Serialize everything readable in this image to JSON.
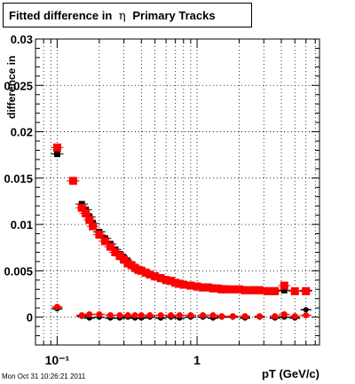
{
  "title": {
    "prefix": "Fitted difference in",
    "symbol": "η",
    "suffix": "Primary Tracks"
  },
  "footer": {
    "timestamp": "Mon Oct 31 10:26:21 2011"
  },
  "colors": {
    "series_red": "#ff0000",
    "series_black": "#000000",
    "frame": "#000000"
  },
  "chart_data": {
    "type": "scatter",
    "title": "Fitted difference in η Primary Tracks",
    "xlabel": "pT (GeV/c)",
    "ylabel": "difference in",
    "x_scale": "log",
    "xlim": [
      0.07,
      7.5
    ],
    "ylim": [
      -0.003,
      0.03
    ],
    "grid": true,
    "y_tick_labels": [
      "0",
      "0.005",
      "0.01",
      "0.015",
      "0.02",
      "0.025",
      "0.03"
    ],
    "y_ticks": [
      0,
      0.005,
      0.01,
      0.015,
      0.02,
      0.025,
      0.03
    ],
    "x_tick_labels": [
      "10⁻¹",
      "1"
    ],
    "x_ticks": [
      0.1,
      1
    ],
    "series": [
      {
        "color": "#ff0000",
        "marker": "square",
        "points": [
          [
            0.1,
            0.0183
          ],
          [
            0.13,
            0.0147
          ],
          [
            0.15,
            0.0118
          ],
          [
            0.16,
            0.0112
          ],
          [
            0.17,
            0.0105
          ],
          [
            0.18,
            0.0098
          ],
          [
            0.2,
            0.0089
          ],
          [
            0.22,
            0.0082
          ],
          [
            0.24,
            0.0076
          ],
          [
            0.26,
            0.007
          ],
          [
            0.28,
            0.0066
          ],
          [
            0.3,
            0.0062
          ],
          [
            0.32,
            0.0058
          ],
          [
            0.34,
            0.0056
          ],
          [
            0.36,
            0.0053
          ],
          [
            0.38,
            0.0051
          ],
          [
            0.4,
            0.005
          ],
          [
            0.43,
            0.0048
          ],
          [
            0.46,
            0.0046
          ],
          [
            0.5,
            0.0044
          ],
          [
            0.55,
            0.0042
          ],
          [
            0.6,
            0.004
          ],
          [
            0.65,
            0.0039
          ],
          [
            0.7,
            0.0037
          ],
          [
            0.75,
            0.0036
          ],
          [
            0.8,
            0.0035
          ],
          [
            0.9,
            0.0034
          ],
          [
            1.0,
            0.0033
          ],
          [
            1.1,
            0.0032
          ],
          [
            1.2,
            0.0032
          ],
          [
            1.3,
            0.0031
          ],
          [
            1.4,
            0.0031
          ],
          [
            1.5,
            0.003
          ],
          [
            1.6,
            0.003
          ],
          [
            1.8,
            0.003
          ],
          [
            2.0,
            0.003
          ],
          [
            2.2,
            0.0029
          ],
          [
            2.5,
            0.0029
          ],
          [
            2.8,
            0.0029
          ],
          [
            3.2,
            0.0028
          ],
          [
            3.6,
            0.0028
          ],
          [
            4.2,
            0.0034
          ],
          [
            5.0,
            0.0028
          ],
          [
            6.0,
            0.0028
          ]
        ],
        "low_points": [
          [
            0.1,
            0.0011
          ],
          [
            0.15,
            0.0002
          ],
          [
            0.17,
            0.0003
          ],
          [
            0.2,
            0.0003
          ],
          [
            0.24,
            0.0002
          ],
          [
            0.28,
            0.0002
          ],
          [
            0.32,
            0.0002
          ],
          [
            0.36,
            0.0002
          ],
          [
            0.4,
            0.0002
          ],
          [
            0.46,
            0.0002
          ],
          [
            0.55,
            0.0002
          ],
          [
            0.65,
            0.0002
          ],
          [
            0.75,
            0.0002
          ],
          [
            0.9,
            0.0002
          ],
          [
            1.1,
            0.0002
          ],
          [
            1.3,
            0.0002
          ],
          [
            1.5,
            0.0001
          ],
          [
            1.8,
            0.0001
          ],
          [
            2.2,
            0.0001
          ],
          [
            2.8,
            0.0001
          ],
          [
            3.6,
            0.0001
          ],
          [
            4.2,
            0.0003
          ],
          [
            5.0,
            0.0001
          ],
          [
            6.0,
            0.0002
          ]
        ]
      },
      {
        "color": "#000000",
        "marker": "square",
        "points": [
          [
            0.1,
            0.0176
          ],
          [
            0.13,
            0.0147
          ],
          [
            0.15,
            0.0122
          ],
          [
            0.16,
            0.0116
          ],
          [
            0.17,
            0.0108
          ],
          [
            0.18,
            0.0101
          ],
          [
            0.2,
            0.0092
          ],
          [
            0.22,
            0.0085
          ],
          [
            0.24,
            0.0079
          ],
          [
            0.26,
            0.0073
          ],
          [
            0.28,
            0.0068
          ],
          [
            0.3,
            0.0064
          ],
          [
            0.32,
            0.006
          ],
          [
            0.34,
            0.0057
          ],
          [
            0.36,
            0.0054
          ],
          [
            0.38,
            0.0052
          ],
          [
            0.4,
            0.0051
          ],
          [
            0.43,
            0.0049
          ],
          [
            0.46,
            0.0047
          ],
          [
            0.5,
            0.0045
          ],
          [
            0.55,
            0.0043
          ],
          [
            0.6,
            0.0041
          ],
          [
            0.65,
            0.004
          ],
          [
            0.7,
            0.0038
          ],
          [
            0.75,
            0.0037
          ],
          [
            0.8,
            0.0036
          ],
          [
            0.9,
            0.0035
          ],
          [
            1.0,
            0.0034
          ],
          [
            1.1,
            0.0033
          ],
          [
            1.2,
            0.0033
          ],
          [
            1.3,
            0.0032
          ],
          [
            1.4,
            0.0031
          ],
          [
            1.5,
            0.0031
          ],
          [
            1.6,
            0.0031
          ],
          [
            1.8,
            0.003
          ],
          [
            2.0,
            0.003
          ],
          [
            2.2,
            0.003
          ],
          [
            2.5,
            0.003
          ],
          [
            2.8,
            0.003
          ],
          [
            3.2,
            0.0029
          ],
          [
            3.6,
            0.0029
          ],
          [
            4.2,
            0.0029
          ],
          [
            5.0,
            0.0028
          ],
          [
            6.0,
            0.0029
          ]
        ],
        "low_points": [
          [
            0.1,
            0.0009
          ],
          [
            0.15,
            0.0001
          ],
          [
            0.17,
            -0.0001
          ],
          [
            0.2,
            0.0
          ],
          [
            0.24,
            -0.0001
          ],
          [
            0.28,
            -0.0001
          ],
          [
            0.32,
            0.0
          ],
          [
            0.36,
            -0.0001
          ],
          [
            0.4,
            -0.0001
          ],
          [
            0.46,
            0.0
          ],
          [
            0.55,
            -0.0001
          ],
          [
            0.65,
            0.0
          ],
          [
            0.75,
            -0.0001
          ],
          [
            0.9,
            0.0
          ],
          [
            1.1,
            0.0
          ],
          [
            1.3,
            -0.0001
          ],
          [
            1.5,
            0.0
          ],
          [
            1.8,
            0.0
          ],
          [
            2.2,
            -0.0001
          ],
          [
            2.8,
            0.0
          ],
          [
            3.6,
            -0.0001
          ],
          [
            4.2,
            0.0
          ],
          [
            5.0,
            -0.0001
          ],
          [
            6.0,
            0.0008
          ]
        ]
      }
    ]
  }
}
